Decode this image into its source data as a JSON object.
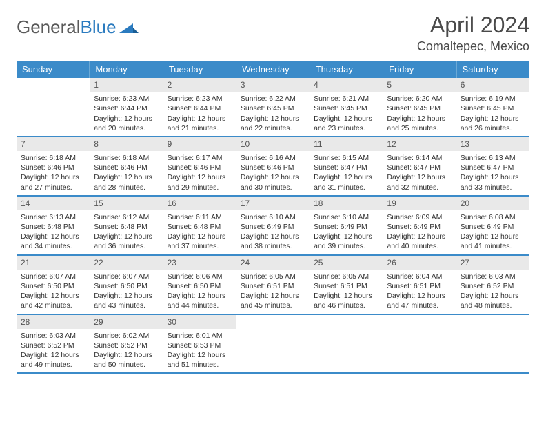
{
  "logo": {
    "word1": "General",
    "word2": "Blue"
  },
  "title": "April 2024",
  "location": "Comaltepec, Mexico",
  "colors": {
    "header_bg": "#3b8bc9",
    "header_text": "#ffffff",
    "daynum_bg": "#e9e9e9",
    "week_divider": "#3b8bc9",
    "logo_gray": "#5a5a5a",
    "logo_blue": "#2b7bbf"
  },
  "day_names": [
    "Sunday",
    "Monday",
    "Tuesday",
    "Wednesday",
    "Thursday",
    "Friday",
    "Saturday"
  ],
  "weeks": [
    [
      {
        "n": "",
        "sunrise": "",
        "sunset": "",
        "daylight": ""
      },
      {
        "n": "1",
        "sunrise": "Sunrise: 6:23 AM",
        "sunset": "Sunset: 6:44 PM",
        "daylight": "Daylight: 12 hours and 20 minutes."
      },
      {
        "n": "2",
        "sunrise": "Sunrise: 6:23 AM",
        "sunset": "Sunset: 6:44 PM",
        "daylight": "Daylight: 12 hours and 21 minutes."
      },
      {
        "n": "3",
        "sunrise": "Sunrise: 6:22 AM",
        "sunset": "Sunset: 6:45 PM",
        "daylight": "Daylight: 12 hours and 22 minutes."
      },
      {
        "n": "4",
        "sunrise": "Sunrise: 6:21 AM",
        "sunset": "Sunset: 6:45 PM",
        "daylight": "Daylight: 12 hours and 23 minutes."
      },
      {
        "n": "5",
        "sunrise": "Sunrise: 6:20 AM",
        "sunset": "Sunset: 6:45 PM",
        "daylight": "Daylight: 12 hours and 25 minutes."
      },
      {
        "n": "6",
        "sunrise": "Sunrise: 6:19 AM",
        "sunset": "Sunset: 6:45 PM",
        "daylight": "Daylight: 12 hours and 26 minutes."
      }
    ],
    [
      {
        "n": "7",
        "sunrise": "Sunrise: 6:18 AM",
        "sunset": "Sunset: 6:46 PM",
        "daylight": "Daylight: 12 hours and 27 minutes."
      },
      {
        "n": "8",
        "sunrise": "Sunrise: 6:18 AM",
        "sunset": "Sunset: 6:46 PM",
        "daylight": "Daylight: 12 hours and 28 minutes."
      },
      {
        "n": "9",
        "sunrise": "Sunrise: 6:17 AM",
        "sunset": "Sunset: 6:46 PM",
        "daylight": "Daylight: 12 hours and 29 minutes."
      },
      {
        "n": "10",
        "sunrise": "Sunrise: 6:16 AM",
        "sunset": "Sunset: 6:46 PM",
        "daylight": "Daylight: 12 hours and 30 minutes."
      },
      {
        "n": "11",
        "sunrise": "Sunrise: 6:15 AM",
        "sunset": "Sunset: 6:47 PM",
        "daylight": "Daylight: 12 hours and 31 minutes."
      },
      {
        "n": "12",
        "sunrise": "Sunrise: 6:14 AM",
        "sunset": "Sunset: 6:47 PM",
        "daylight": "Daylight: 12 hours and 32 minutes."
      },
      {
        "n": "13",
        "sunrise": "Sunrise: 6:13 AM",
        "sunset": "Sunset: 6:47 PM",
        "daylight": "Daylight: 12 hours and 33 minutes."
      }
    ],
    [
      {
        "n": "14",
        "sunrise": "Sunrise: 6:13 AM",
        "sunset": "Sunset: 6:48 PM",
        "daylight": "Daylight: 12 hours and 34 minutes."
      },
      {
        "n": "15",
        "sunrise": "Sunrise: 6:12 AM",
        "sunset": "Sunset: 6:48 PM",
        "daylight": "Daylight: 12 hours and 36 minutes."
      },
      {
        "n": "16",
        "sunrise": "Sunrise: 6:11 AM",
        "sunset": "Sunset: 6:48 PM",
        "daylight": "Daylight: 12 hours and 37 minutes."
      },
      {
        "n": "17",
        "sunrise": "Sunrise: 6:10 AM",
        "sunset": "Sunset: 6:49 PM",
        "daylight": "Daylight: 12 hours and 38 minutes."
      },
      {
        "n": "18",
        "sunrise": "Sunrise: 6:10 AM",
        "sunset": "Sunset: 6:49 PM",
        "daylight": "Daylight: 12 hours and 39 minutes."
      },
      {
        "n": "19",
        "sunrise": "Sunrise: 6:09 AM",
        "sunset": "Sunset: 6:49 PM",
        "daylight": "Daylight: 12 hours and 40 minutes."
      },
      {
        "n": "20",
        "sunrise": "Sunrise: 6:08 AM",
        "sunset": "Sunset: 6:49 PM",
        "daylight": "Daylight: 12 hours and 41 minutes."
      }
    ],
    [
      {
        "n": "21",
        "sunrise": "Sunrise: 6:07 AM",
        "sunset": "Sunset: 6:50 PM",
        "daylight": "Daylight: 12 hours and 42 minutes."
      },
      {
        "n": "22",
        "sunrise": "Sunrise: 6:07 AM",
        "sunset": "Sunset: 6:50 PM",
        "daylight": "Daylight: 12 hours and 43 minutes."
      },
      {
        "n": "23",
        "sunrise": "Sunrise: 6:06 AM",
        "sunset": "Sunset: 6:50 PM",
        "daylight": "Daylight: 12 hours and 44 minutes."
      },
      {
        "n": "24",
        "sunrise": "Sunrise: 6:05 AM",
        "sunset": "Sunset: 6:51 PM",
        "daylight": "Daylight: 12 hours and 45 minutes."
      },
      {
        "n": "25",
        "sunrise": "Sunrise: 6:05 AM",
        "sunset": "Sunset: 6:51 PM",
        "daylight": "Daylight: 12 hours and 46 minutes."
      },
      {
        "n": "26",
        "sunrise": "Sunrise: 6:04 AM",
        "sunset": "Sunset: 6:51 PM",
        "daylight": "Daylight: 12 hours and 47 minutes."
      },
      {
        "n": "27",
        "sunrise": "Sunrise: 6:03 AM",
        "sunset": "Sunset: 6:52 PM",
        "daylight": "Daylight: 12 hours and 48 minutes."
      }
    ],
    [
      {
        "n": "28",
        "sunrise": "Sunrise: 6:03 AM",
        "sunset": "Sunset: 6:52 PM",
        "daylight": "Daylight: 12 hours and 49 minutes."
      },
      {
        "n": "29",
        "sunrise": "Sunrise: 6:02 AM",
        "sunset": "Sunset: 6:52 PM",
        "daylight": "Daylight: 12 hours and 50 minutes."
      },
      {
        "n": "30",
        "sunrise": "Sunrise: 6:01 AM",
        "sunset": "Sunset: 6:53 PM",
        "daylight": "Daylight: 12 hours and 51 minutes."
      },
      {
        "n": "",
        "sunrise": "",
        "sunset": "",
        "daylight": ""
      },
      {
        "n": "",
        "sunrise": "",
        "sunset": "",
        "daylight": ""
      },
      {
        "n": "",
        "sunrise": "",
        "sunset": "",
        "daylight": ""
      },
      {
        "n": "",
        "sunrise": "",
        "sunset": "",
        "daylight": ""
      }
    ]
  ]
}
